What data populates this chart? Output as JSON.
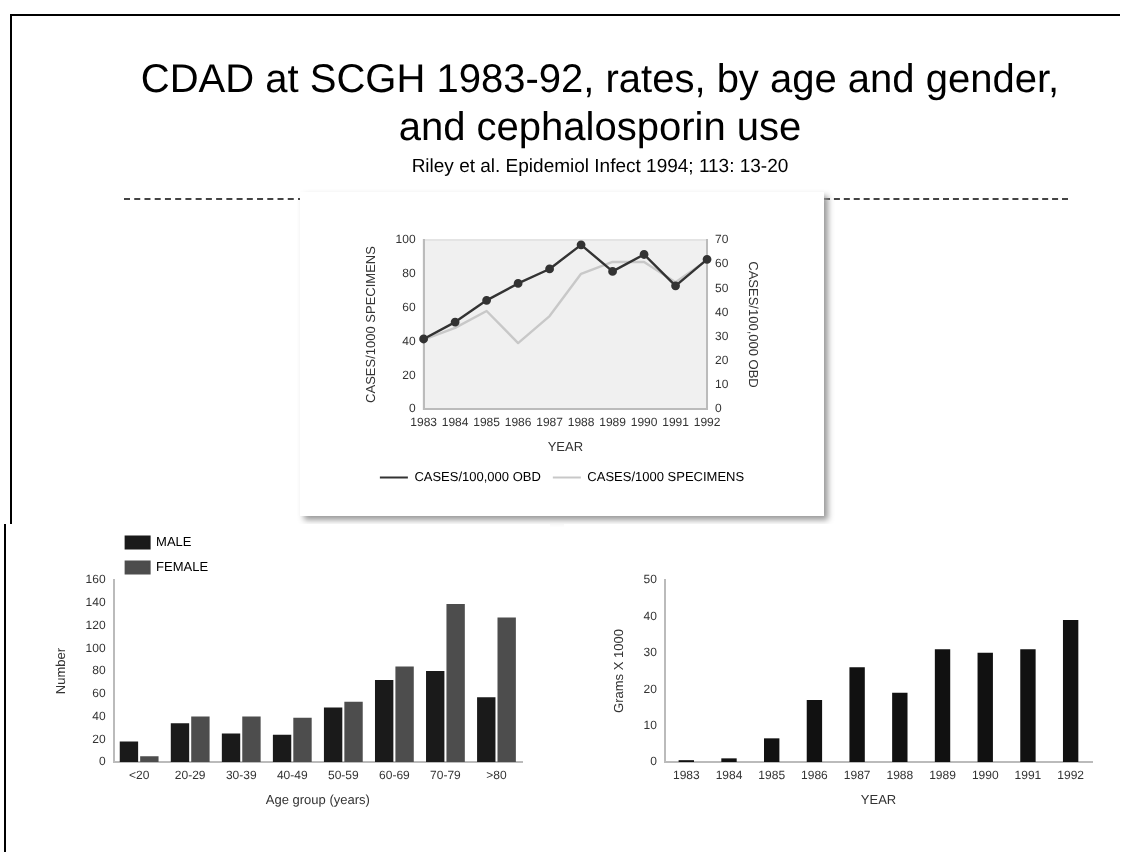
{
  "chart_data": [
    {
      "type": "line",
      "title": "CDAD at SCGH 1983-92, rates, by age and gender, and cephalosporin use",
      "subtitle": "Riley et al. Epidemiol Infect 1994; 113: 13-20",
      "xlabel": "YEAR",
      "ylabel": "CASES/1000 SPECIMENS",
      "y2label": "CASES/100,000 OBD",
      "categories": [
        "1983",
        "1984",
        "1985",
        "1986",
        "1987",
        "1988",
        "1989",
        "1990",
        "1991",
        "1992"
      ],
      "series": [
        {
          "name": "CASES/100,000 OBD",
          "color": "#333333",
          "axis": "y2",
          "marker": "circle",
          "values": [
            29,
            36,
            45,
            52,
            58,
            68,
            57,
            64,
            51,
            62
          ]
        },
        {
          "name": "CASES/1000 SPECIMENS",
          "color": "#c8c8c8",
          "axis": "y",
          "marker": "none",
          "values": [
            41,
            48,
            58,
            39,
            55,
            80,
            87,
            87,
            75,
            88
          ]
        }
      ],
      "ylim": [
        0,
        100
      ],
      "yticks": [
        0,
        20,
        40,
        60,
        80,
        100
      ],
      "y2lim": [
        0,
        70
      ],
      "y2ticks": [
        0,
        10,
        20,
        30,
        40,
        50,
        60,
        70
      ],
      "legend": "bottom"
    },
    {
      "type": "bar",
      "xlabel": "Age group (years)",
      "ylabel": "Number",
      "categories": [
        "<20",
        "20-29",
        "30-39",
        "40-49",
        "50-59",
        "60-69",
        "70-79",
        ">80"
      ],
      "series": [
        {
          "name": "MALE",
          "color": "#1a1a1a",
          "values": [
            18,
            34,
            25,
            24,
            48,
            72,
            80,
            57
          ]
        },
        {
          "name": "FEMALE",
          "color": "#4d4d4d",
          "values": [
            5,
            40,
            40,
            39,
            53,
            84,
            139,
            127
          ]
        }
      ],
      "ylim": [
        0,
        160
      ],
      "yticks": [
        0,
        20,
        40,
        60,
        80,
        100,
        120,
        140,
        160
      ],
      "legend": "top left"
    },
    {
      "type": "bar",
      "xlabel": "YEAR",
      "ylabel": "Grams X 1000",
      "categories": [
        "1983",
        "1984",
        "1985",
        "1986",
        "1987",
        "1988",
        "1989",
        "1990",
        "1991",
        "1992"
      ],
      "values": [
        0.5,
        1,
        6.5,
        17,
        26,
        19,
        31,
        30,
        31,
        39
      ],
      "color": "#111111",
      "ylim": [
        0,
        50
      ],
      "yticks": [
        0,
        10,
        20,
        30,
        40,
        50
      ]
    }
  ]
}
